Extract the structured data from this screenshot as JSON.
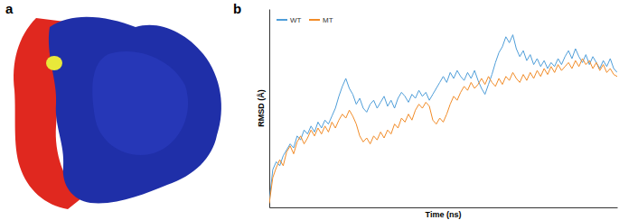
{
  "panel_labels": [
    "a",
    "b"
  ],
  "chart_data": {
    "type": "line",
    "x_label": "Time (ns)",
    "y_label": "RMSD (Å)",
    "x": [
      0,
      1,
      2,
      3,
      4,
      5,
      6,
      7,
      8,
      9,
      10,
      11,
      12,
      13,
      14,
      15,
      16,
      17,
      18,
      19,
      20,
      21,
      22,
      23,
      24,
      25,
      26,
      27,
      28,
      29,
      30,
      31,
      32,
      33,
      34,
      35,
      36,
      37,
      38,
      39,
      40,
      41,
      42,
      43,
      44,
      45,
      46,
      47,
      48,
      49,
      50,
      51,
      52,
      53,
      54,
      55,
      56,
      57,
      58,
      59,
      60,
      61,
      62,
      63,
      64,
      65,
      66,
      67,
      68,
      69,
      70,
      71,
      72,
      73,
      74,
      75,
      76,
      77,
      78,
      79,
      80,
      81,
      82,
      83,
      84,
      85,
      86,
      87,
      88,
      89,
      90,
      91,
      92,
      93,
      94,
      95,
      96,
      97,
      98,
      99,
      100
    ],
    "xlim": [
      0,
      100
    ],
    "ylim": [
      0,
      10
    ],
    "tick_labels": false,
    "legend": "upper left",
    "series": [
      {
        "name": "WT",
        "color": "#4f9ed9",
        "values": [
          0.3,
          1.9,
          2.3,
          2.1,
          2.6,
          2.9,
          3.2,
          3.0,
          3.6,
          3.4,
          3.9,
          3.7,
          4.1,
          3.8,
          4.3,
          4.0,
          4.4,
          4.2,
          4.6,
          5.0,
          5.6,
          6.1,
          6.5,
          6.0,
          5.7,
          5.2,
          5.5,
          5.0,
          4.8,
          5.2,
          5.4,
          5.0,
          5.3,
          5.6,
          5.1,
          5.4,
          5.0,
          5.5,
          5.8,
          5.6,
          5.3,
          5.7,
          5.5,
          5.9,
          5.6,
          5.8,
          5.4,
          5.7,
          6.0,
          6.3,
          6.6,
          6.3,
          6.8,
          6.5,
          6.9,
          6.6,
          6.4,
          6.8,
          6.5,
          6.9,
          6.4,
          6.0,
          5.7,
          6.2,
          6.7,
          7.3,
          7.8,
          8.1,
          8.6,
          8.3,
          8.7,
          8.0,
          7.6,
          7.9,
          7.4,
          7.7,
          7.2,
          7.5,
          7.1,
          7.4,
          7.0,
          7.3,
          7.1,
          7.5,
          7.2,
          7.6,
          7.9,
          7.5,
          8.0,
          7.6,
          7.3,
          7.7,
          7.2,
          7.6,
          7.3,
          7.0,
          7.4,
          7.1,
          7.5,
          7.0,
          6.8
        ]
      },
      {
        "name": "MT",
        "color": "#f28c28",
        "values": [
          0.2,
          1.5,
          2.0,
          2.4,
          2.1,
          2.8,
          3.1,
          2.7,
          3.3,
          3.6,
          3.2,
          3.5,
          3.9,
          3.6,
          4.0,
          3.7,
          4.1,
          3.8,
          4.3,
          4.0,
          4.4,
          4.7,
          4.5,
          4.9,
          4.6,
          4.2,
          3.6,
          3.3,
          3.5,
          3.2,
          3.6,
          3.4,
          3.8,
          3.5,
          3.9,
          3.7,
          4.2,
          4.0,
          4.5,
          4.3,
          4.7,
          4.4,
          4.9,
          5.2,
          5.0,
          5.3,
          5.1,
          4.4,
          4.2,
          4.5,
          4.3,
          4.7,
          5.2,
          5.6,
          5.4,
          5.8,
          6.1,
          5.9,
          6.3,
          6.0,
          6.2,
          6.5,
          6.2,
          6.6,
          6.3,
          6.1,
          6.5,
          6.2,
          6.6,
          6.4,
          6.8,
          6.5,
          6.3,
          6.7,
          6.4,
          6.8,
          6.5,
          6.9,
          6.6,
          7.0,
          6.7,
          7.1,
          6.8,
          7.2,
          6.9,
          7.1,
          7.3,
          7.0,
          7.4,
          7.1,
          7.5,
          7.2,
          7.4,
          7.0,
          7.3,
          6.9,
          7.2,
          6.8,
          7.0,
          6.7,
          6.6
        ]
      }
    ]
  }
}
